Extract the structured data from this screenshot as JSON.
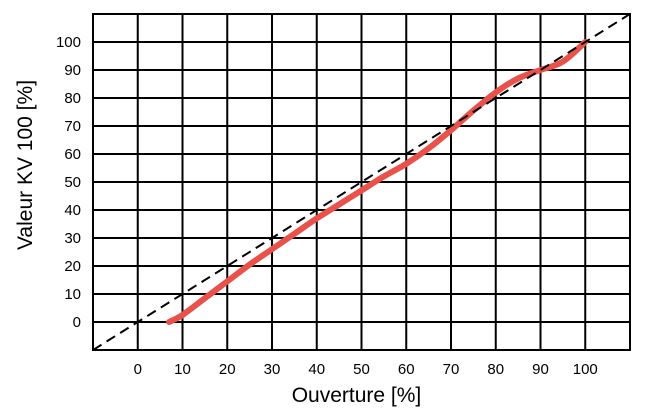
{
  "chart_data": {
    "type": "line",
    "xlabel": "Ouverture [%]",
    "ylabel": "Valeur KV 100 [%]",
    "xlim": [
      -10,
      110
    ],
    "ylim": [
      -10,
      110
    ],
    "grid": true,
    "x_ticks": [
      0,
      10,
      20,
      30,
      40,
      50,
      60,
      70,
      80,
      90,
      100
    ],
    "y_ticks": [
      0,
      10,
      20,
      30,
      40,
      50,
      60,
      70,
      80,
      90,
      100
    ],
    "colors": {
      "curve": "#e8524a",
      "reference": "#000000",
      "grid": "#000000"
    },
    "series": [
      {
        "style": "solid",
        "color": "#e8524a",
        "x": [
          7,
          10,
          15,
          20,
          25,
          30,
          35,
          40,
          45,
          50,
          55,
          60,
          65,
          70,
          75,
          80,
          85,
          90,
          95,
          100
        ],
        "y": [
          0,
          2.5,
          8.5,
          14.5,
          20.5,
          26,
          31.5,
          37,
          42,
          47,
          52,
          56.5,
          62,
          68.5,
          75.5,
          82,
          87,
          90,
          93,
          100
        ]
      },
      {
        "style": "dashed",
        "color": "#000000",
        "x": [
          -10,
          110
        ],
        "y": [
          -10,
          110
        ]
      }
    ]
  }
}
